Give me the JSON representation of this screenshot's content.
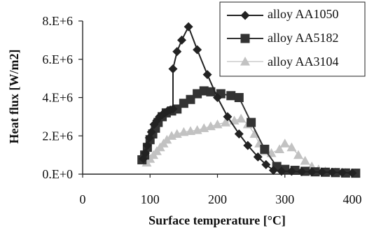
{
  "chart_data": {
    "type": "line",
    "title": "",
    "xlabel": "Surface temperature [°C]",
    "ylabel": "Heat flux [W/m2]",
    "xlim": [
      0,
      400
    ],
    "ylim": [
      0,
      8000000
    ],
    "x_ticks": [
      0,
      100,
      200,
      300,
      400
    ],
    "x_tick_labels": [
      "0",
      "100",
      "200",
      "300",
      "400"
    ],
    "y_ticks": [
      0,
      2000000,
      4000000,
      6000000,
      8000000
    ],
    "y_tick_labels": [
      "0.E+0",
      "2.E+6",
      "4.E+6",
      "6.E+6",
      "8.E+6"
    ],
    "grid": false,
    "legend_position": "top-right",
    "colors": {
      "axis": "#222222",
      "alloy_aa1050": "#222222",
      "alloy_aa5182": "#333333",
      "alloy_aa3104": "#c2c2c2"
    },
    "series": [
      {
        "name": "alloy AA1050",
        "marker": "diamond",
        "x": [
          90,
          93,
          96,
          99,
          102,
          106,
          110,
          114,
          118,
          122,
          126,
          130,
          134,
          134,
          140,
          147,
          157,
          170,
          185,
          200,
          215,
          232,
          245,
          260,
          272,
          283,
          295,
          310,
          325,
          340,
          355,
          370,
          385,
          400
        ],
        "y": [
          800000,
          1100000,
          1500000,
          1900000,
          2200000,
          2600000,
          2800000,
          3000000,
          3100000,
          3200000,
          3300000,
          3350000,
          3400000,
          5500000,
          6400000,
          7000000,
          7700000,
          6500000,
          5200000,
          4000000,
          3000000,
          2100000,
          1500000,
          900000,
          500000,
          200000,
          150000,
          150000,
          130000,
          120000,
          110000,
          100000,
          80000,
          60000
        ]
      },
      {
        "name": "alloy AA5182",
        "marker": "square",
        "x": [
          88,
          92,
          96,
          100,
          104,
          108,
          112,
          118,
          124,
          132,
          140,
          150,
          160,
          170,
          180,
          190,
          205,
          220,
          232,
          250,
          270,
          288,
          300,
          315,
          330,
          345,
          360,
          375,
          390,
          405
        ],
        "y": [
          750000,
          1000000,
          1400000,
          1800000,
          2100000,
          2400000,
          2700000,
          3000000,
          3200000,
          3300000,
          3400000,
          3700000,
          3900000,
          4200000,
          4350000,
          4300000,
          4200000,
          4100000,
          4000000,
          2700000,
          1300000,
          400000,
          250000,
          200000,
          150000,
          120000,
          100000,
          80000,
          60000,
          50000
        ]
      },
      {
        "name": "alloy AA3104",
        "marker": "triangle",
        "x": [
          95,
          100,
          105,
          110,
          115,
          120,
          125,
          132,
          140,
          150,
          160,
          170,
          180,
          190,
          200,
          212,
          225,
          235,
          245,
          255,
          262,
          270,
          280,
          292,
          300,
          310,
          320,
          330,
          340,
          350,
          360,
          375,
          390,
          405
        ],
        "y": [
          600000,
          800000,
          1000000,
          1200000,
          1400000,
          1600000,
          1800000,
          2000000,
          2100000,
          2200000,
          2250000,
          2300000,
          2400000,
          2500000,
          2600000,
          2700000,
          2800000,
          2900000,
          2600000,
          2100000,
          1600000,
          1200000,
          1100000,
          1300000,
          1600000,
          1400000,
          1000000,
          700000,
          400000,
          250000,
          150000,
          100000,
          70000,
          50000
        ]
      }
    ]
  }
}
